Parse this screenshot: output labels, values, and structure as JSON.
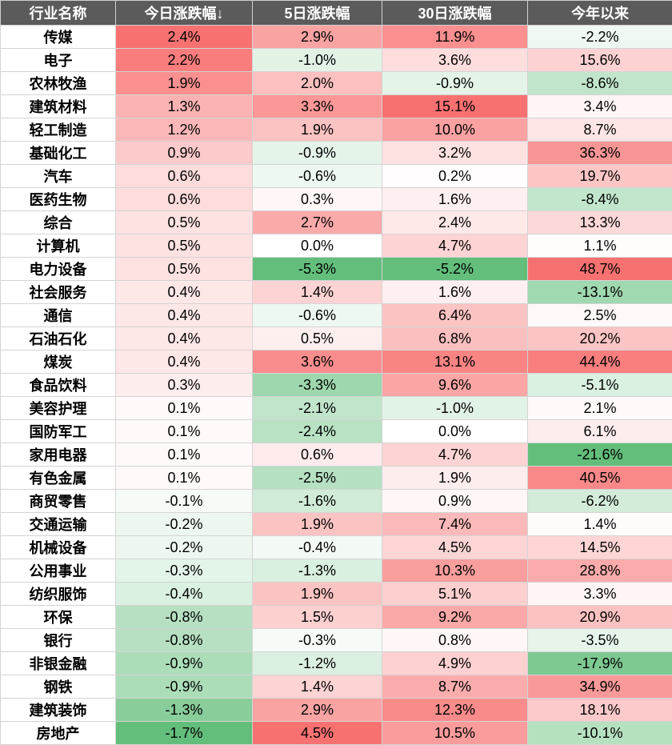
{
  "headers": [
    "行业名称",
    "今日涨跌幅↓",
    "5日涨跌幅",
    "30日涨跌幅",
    "今年以来"
  ],
  "rows": [
    {
      "name": "传媒",
      "d1": 2.4,
      "d5": 2.9,
      "d30": 11.9,
      "ytd": -2.2
    },
    {
      "name": "电子",
      "d1": 2.2,
      "d5": -1.0,
      "d30": 3.6,
      "ytd": 15.6
    },
    {
      "name": "农林牧渔",
      "d1": 1.9,
      "d5": 2.0,
      "d30": -0.9,
      "ytd": -8.6
    },
    {
      "name": "建筑材料",
      "d1": 1.3,
      "d5": 3.3,
      "d30": 15.1,
      "ytd": 3.4
    },
    {
      "name": "轻工制造",
      "d1": 1.2,
      "d5": 1.9,
      "d30": 10.0,
      "ytd": 8.7
    },
    {
      "name": "基础化工",
      "d1": 0.9,
      "d5": -0.9,
      "d30": 3.2,
      "ytd": 36.3
    },
    {
      "name": "汽车",
      "d1": 0.6,
      "d5": -0.6,
      "d30": 0.2,
      "ytd": 19.7
    },
    {
      "name": "医药生物",
      "d1": 0.6,
      "d5": 0.3,
      "d30": 1.6,
      "ytd": -8.4
    },
    {
      "name": "综合",
      "d1": 0.5,
      "d5": 2.7,
      "d30": 2.4,
      "ytd": 13.3
    },
    {
      "name": "计算机",
      "d1": 0.5,
      "d5": 0.0,
      "d30": 4.7,
      "ytd": 1.1
    },
    {
      "name": "电力设备",
      "d1": 0.5,
      "d5": -5.3,
      "d30": -5.2,
      "ytd": 48.7
    },
    {
      "name": "社会服务",
      "d1": 0.4,
      "d5": 1.4,
      "d30": 1.6,
      "ytd": -13.1
    },
    {
      "name": "通信",
      "d1": 0.4,
      "d5": -0.6,
      "d30": 6.4,
      "ytd": 2.5
    },
    {
      "name": "石油石化",
      "d1": 0.4,
      "d5": 0.5,
      "d30": 6.8,
      "ytd": 20.2
    },
    {
      "name": "煤炭",
      "d1": 0.4,
      "d5": 3.6,
      "d30": 13.1,
      "ytd": 44.4
    },
    {
      "name": "食品饮料",
      "d1": 0.3,
      "d5": -3.3,
      "d30": 9.6,
      "ytd": -5.1
    },
    {
      "name": "美容护理",
      "d1": 0.1,
      "d5": -2.1,
      "d30": -1.0,
      "ytd": 2.1
    },
    {
      "name": "国防军工",
      "d1": 0.1,
      "d5": -2.4,
      "d30": 0.0,
      "ytd": 6.1
    },
    {
      "name": "家用电器",
      "d1": 0.1,
      "d5": 0.6,
      "d30": 4.7,
      "ytd": -21.6
    },
    {
      "name": "有色金属",
      "d1": 0.1,
      "d5": -2.5,
      "d30": 1.9,
      "ytd": 40.5
    },
    {
      "name": "商贸零售",
      "d1": -0.1,
      "d5": -1.6,
      "d30": 0.9,
      "ytd": -6.2
    },
    {
      "name": "交通运输",
      "d1": -0.2,
      "d5": 1.9,
      "d30": 7.4,
      "ytd": 1.4
    },
    {
      "name": "机械设备",
      "d1": -0.2,
      "d5": -0.4,
      "d30": 4.5,
      "ytd": 14.5
    },
    {
      "name": "公用事业",
      "d1": -0.3,
      "d5": -1.3,
      "d30": 10.3,
      "ytd": 28.8
    },
    {
      "name": "纺织服饰",
      "d1": -0.4,
      "d5": 1.9,
      "d30": 5.1,
      "ytd": 3.3
    },
    {
      "name": "环保",
      "d1": -0.8,
      "d5": 1.5,
      "d30": 9.2,
      "ytd": 20.9
    },
    {
      "name": "银行",
      "d1": -0.8,
      "d5": -0.3,
      "d30": 0.8,
      "ytd": -3.5
    },
    {
      "name": "非银金融",
      "d1": -0.9,
      "d5": -1.2,
      "d30": 4.9,
      "ytd": -17.9
    },
    {
      "name": "钢铁",
      "d1": -0.9,
      "d5": 1.4,
      "d30": 8.7,
      "ytd": 34.9
    },
    {
      "name": "建筑装饰",
      "d1": -1.3,
      "d5": 2.9,
      "d30": 12.3,
      "ytd": 18.1
    },
    {
      "name": "房地产",
      "d1": -1.7,
      "d5": 4.5,
      "d30": 10.5,
      "ytd": -10.1
    }
  ],
  "colors": {
    "header_bg": "#5b5b5b",
    "header_fg": "#ffffff",
    "positive_max": "#f87171",
    "negative_max": "#63be7b",
    "neutral": "#ffffff"
  }
}
